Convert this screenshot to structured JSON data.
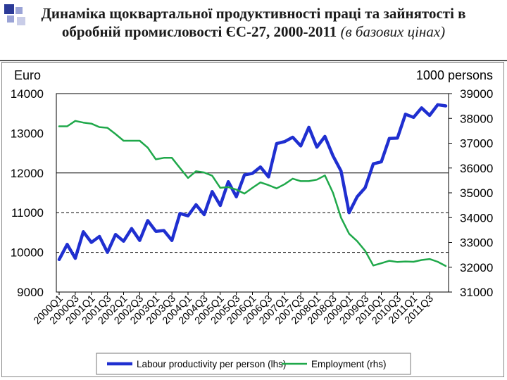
{
  "header": {
    "title_main": "Динаміка щоквартальної продуктивності праці та зайнятості в обробній промисловості ЄС-27, 2000-2011",
    "title_sub": "(в базових цінах)"
  },
  "chart_data": {
    "type": "line",
    "title": "",
    "left_axis": {
      "unit_label": "Euro",
      "ticks": [
        "9000",
        "10000",
        "11000",
        "12000",
        "13000",
        "14000"
      ],
      "ylim": [
        9000,
        14000
      ]
    },
    "right_axis": {
      "unit_label": "1000 persons",
      "ticks": [
        "31000",
        "32000",
        "33000",
        "34000",
        "35000",
        "36000",
        "37000",
        "38000",
        "39000"
      ],
      "ylim": [
        31000,
        39000
      ]
    },
    "x_tick_labels": [
      "2000Q1",
      "2000Q3",
      "2001Q1",
      "2001Q3",
      "2002Q1",
      "2002Q3",
      "2003Q1",
      "2003Q3",
      "2004Q1",
      "2004Q3",
      "2005Q1",
      "2005Q3",
      "2006Q1",
      "2006Q3",
      "2007Q1",
      "2007Q3",
      "2008Q1",
      "2008Q3",
      "2009Q1",
      "2009Q3",
      "2010Q1",
      "2010Q3",
      "2011Q1",
      "2011Q3"
    ],
    "grid": "horizontal dashed at 10000 and 11000, solid at 12000 (left axis)",
    "legend_position": "bottom",
    "series": [
      {
        "name": "Labour productivity per person (lhs)",
        "axis": "left",
        "color": "#1f2fd0",
        "values": [
          9820,
          10200,
          9850,
          10520,
          10250,
          10400,
          10000,
          10450,
          10280,
          10600,
          10300,
          10800,
          10530,
          10550,
          10300,
          10980,
          10920,
          11200,
          10950,
          11530,
          11180,
          11780,
          11400,
          11950,
          11990,
          12150,
          11900,
          12740,
          12790,
          12900,
          12680,
          13150,
          12650,
          12920,
          12430,
          12050,
          11000,
          11400,
          11630,
          12230,
          12280,
          12870,
          12880,
          13480,
          13400,
          13640,
          13450,
          13720,
          13690
        ]
      },
      {
        "name": "Employment (rhs)",
        "axis": "right",
        "color": "#1fa84a",
        "values": [
          37680,
          37680,
          37900,
          37830,
          37790,
          37650,
          37620,
          37370,
          37100,
          37100,
          37100,
          36820,
          36350,
          36410,
          36410,
          36000,
          35600,
          35870,
          35820,
          35690,
          35200,
          35230,
          35130,
          34970,
          35200,
          35420,
          35310,
          35180,
          35350,
          35570,
          35470,
          35470,
          35530,
          35700,
          35000,
          34000,
          33350,
          33050,
          32660,
          32070,
          32160,
          32260,
          32210,
          32230,
          32220,
          32290,
          32330,
          32220,
          32050
        ]
      }
    ]
  },
  "legend": {
    "items": [
      "Labour productivity per person (lhs)",
      "Employment (rhs)"
    ]
  }
}
